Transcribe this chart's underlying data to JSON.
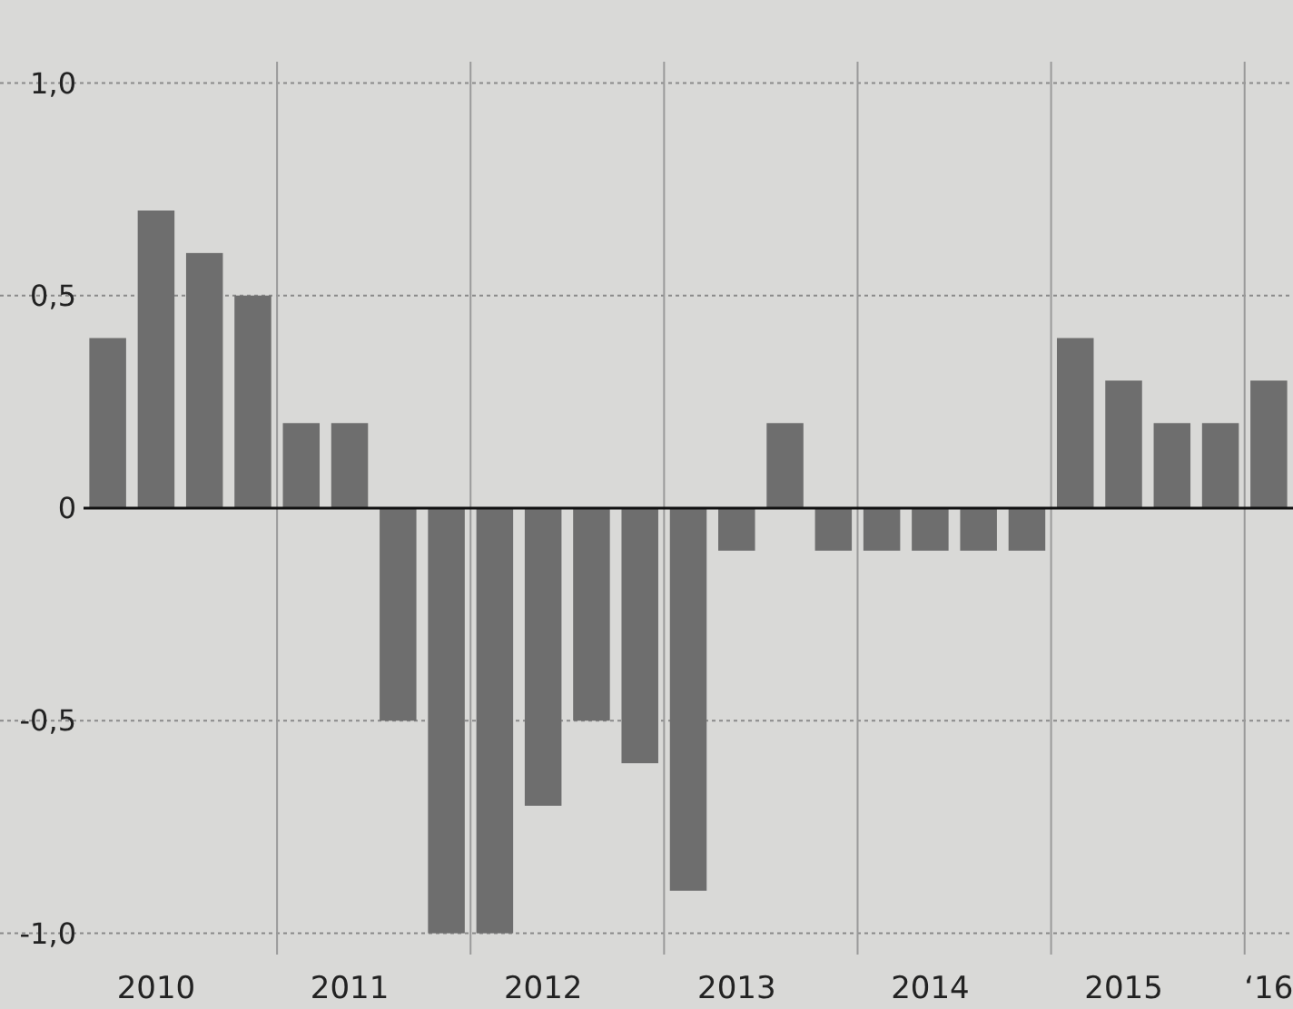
{
  "chart_data": {
    "type": "bar",
    "color": "#6e6e6e",
    "categories": [
      null,
      "2010",
      null,
      null,
      null,
      "2011",
      null,
      null,
      null,
      "2012",
      null,
      null,
      null,
      "2013",
      null,
      null,
      null,
      "2014",
      null,
      null,
      null,
      "2015",
      null,
      null,
      "‘16"
    ],
    "values": [
      0.4,
      0.7,
      0.6,
      0.5,
      0.2,
      0.2,
      -0.5,
      -1.0,
      -1.0,
      -0.7,
      -0.5,
      -0.6,
      -0.9,
      -0.1,
      0.2,
      -0.1,
      -0.1,
      -0.1,
      -0.1,
      -0.1,
      0.4,
      0.3,
      0.2,
      0.2,
      0.3
    ],
    "ylim": [
      -1.05,
      1.05
    ],
    "yticks": [
      {
        "value": -1,
        "label": "-1,0"
      },
      {
        "value": -0.5,
        "label": "-0,5"
      },
      {
        "value": 0,
        "label": "0"
      },
      {
        "value": 0.5,
        "label": "0,5"
      },
      {
        "value": 1,
        "label": "1,0"
      }
    ],
    "grid": true
  }
}
